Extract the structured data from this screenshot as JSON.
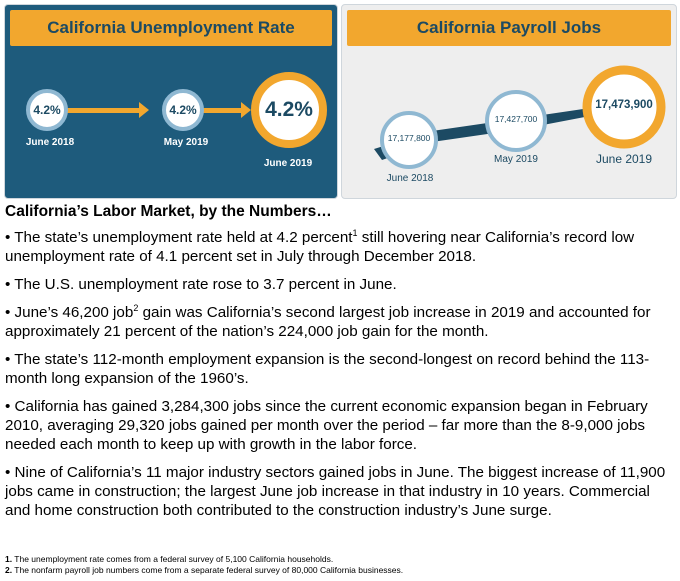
{
  "unemployment_panel": {
    "title": "California Unemployment Rate",
    "points": [
      {
        "value": "4.2%",
        "label": "June 2018"
      },
      {
        "value": "4.2%",
        "label": "May 2019"
      },
      {
        "value": "4.2%",
        "label": "June 2019"
      }
    ]
  },
  "payroll_panel": {
    "title": "California Payroll Jobs",
    "points": [
      {
        "value": "17,177,800",
        "label": "June 2018"
      },
      {
        "value": "17,427,700",
        "label": "May 2019"
      },
      {
        "value": "17,473,900",
        "label": "June 2019"
      }
    ]
  },
  "section_title": "California’s Labor Market, by the Numbers…",
  "bullets": {
    "b1_pre": "• The state’s unemployment rate held at 4.2 percent",
    "b1_sup": "1",
    "b1_post": " still hovering near California’s record low unemployment rate of 4.1 percent set in July through December 2018.",
    "b2": "• The U.S. unemployment rate rose to 3.7 percent in June.",
    "b3_pre": "• June’s 46,200 job",
    "b3_sup": "2",
    "b3_post": " gain was California’s second largest job increase in 2019 and accounted for approximately 21 percent of the nation’s 224,000 job gain for the month.",
    "b4": "• The state’s 112-month employment expansion is the second-longest on record behind the 113-month long expansion of the 1960’s.",
    "b5": "• California has gained 3,284,300 jobs since the current economic expansion began in February 2010, averaging 29,320 jobs gained per month over the period – far more than the 8-9,000 jobs needed each month to keep up with growth in the labor force.",
    "b6": "• Nine of California’s 11 major industry sectors gained jobs in June. The biggest increase of 11,900 jobs came in construction; the largest June job increase in that industry in 10 years. Commercial and home construction both contributed to the construction industry’s June surge."
  },
  "footnotes": {
    "f1_num": "1.",
    "f1_text": " The unemployment rate comes from a federal survey of 5,100 California households.",
    "f2_num": "2.",
    "f2_text": " The nonfarm payroll job numbers come from a separate federal survey of 80,000 California businesses."
  },
  "colors": {
    "navy": "#1e5b7c",
    "orange": "#f2a72e",
    "light_blue": "#8fb8d2",
    "panel_gray": "#eeeeee"
  }
}
